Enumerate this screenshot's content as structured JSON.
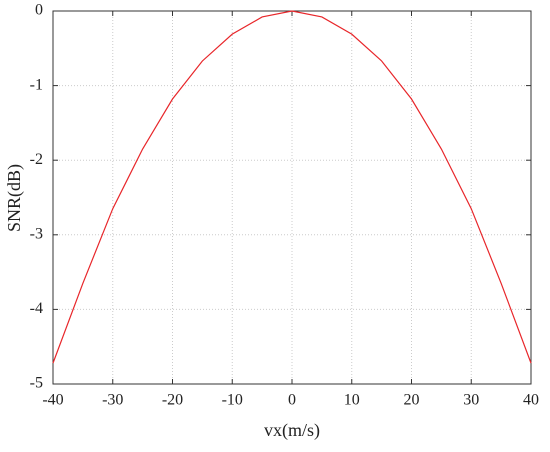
{
  "chart_data": {
    "type": "line",
    "xlabel": "vx(m/s)",
    "ylabel": "SNR(dB)",
    "x": [
      -40,
      -35,
      -30,
      -25,
      -20,
      -15,
      -10,
      -5,
      0,
      5,
      10,
      15,
      20,
      25,
      30,
      35,
      40
    ],
    "series": [
      {
        "color": "#e8262a",
        "values": [
          -4.72,
          -3.65,
          -2.65,
          -1.85,
          -1.18,
          -0.67,
          -0.31,
          -0.08,
          0,
          -0.08,
          -0.31,
          -0.67,
          -1.18,
          -1.85,
          -2.65,
          -3.65,
          -4.72
        ]
      }
    ],
    "xlim": [
      -40,
      40
    ],
    "xticks": [
      -40,
      -30,
      -20,
      -10,
      0,
      10,
      20,
      30,
      40
    ],
    "ylim": [
      -5,
      0
    ],
    "yticks": [
      -5,
      -4,
      -3,
      -2,
      -1,
      0
    ],
    "grid": true
  }
}
